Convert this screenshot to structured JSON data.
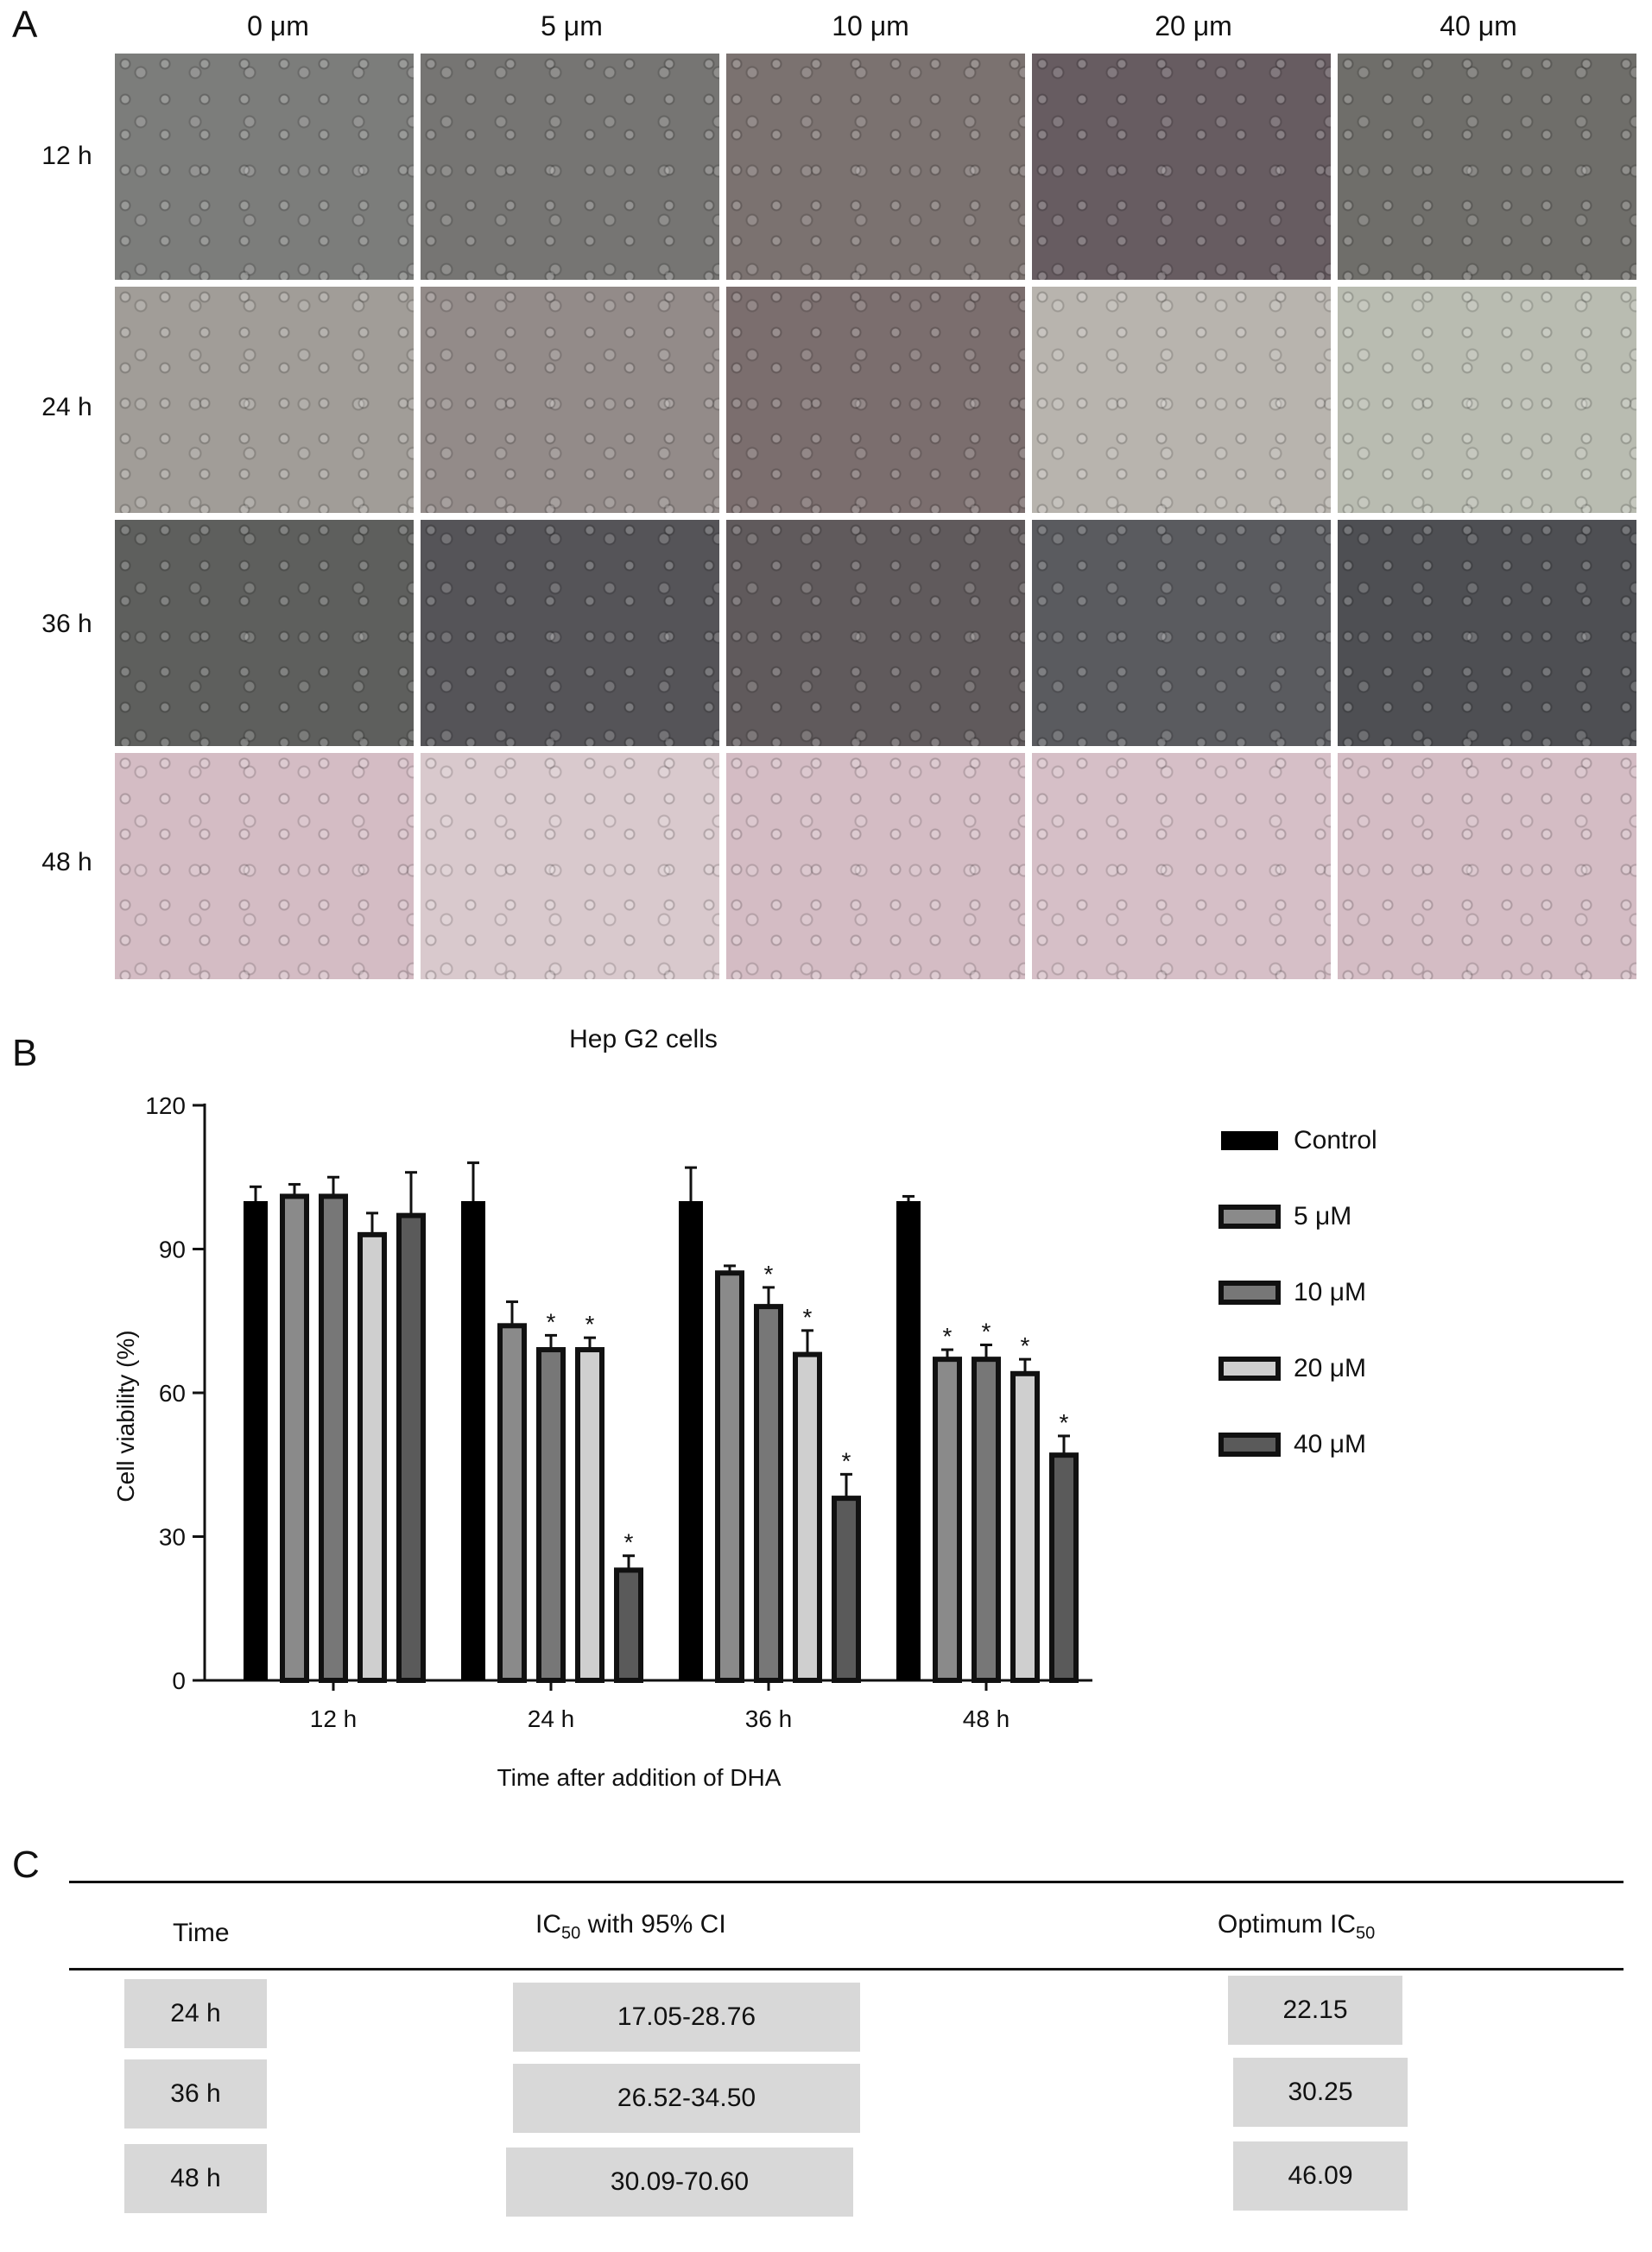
{
  "panel_a": {
    "letter": "A",
    "columns": [
      "0 μm",
      "5 μm",
      "10 μm",
      "20 μm",
      "40 μm"
    ],
    "rows": [
      "12 h",
      "24 h",
      "36 h",
      "48 h"
    ]
  },
  "panel_b": {
    "letter": "B",
    "star": "*"
  },
  "chart_data": {
    "type": "bar",
    "title": "Hep G2 cells",
    "xlabel": "Time after addition of DHA",
    "ylabel": "Cell viability (%)",
    "ylim": [
      0,
      120
    ],
    "yticks": [
      0,
      30,
      60,
      90,
      120
    ],
    "categories": [
      "12 h",
      "24 h",
      "36 h",
      "48 h"
    ],
    "series": [
      {
        "name": "Control",
        "values": [
          100,
          100,
          100,
          100
        ],
        "errors": [
          3,
          8,
          7,
          1
        ],
        "significant": [
          false,
          false,
          false,
          false
        ],
        "color": "#000000"
      },
      {
        "name": "5 μM",
        "values": [
          101,
          74,
          85,
          67
        ],
        "errors": [
          2.5,
          5,
          1.5,
          2
        ],
        "significant": [
          false,
          false,
          false,
          true
        ],
        "color": "#8a8a8a"
      },
      {
        "name": "10 μM",
        "values": [
          101,
          69,
          78,
          67
        ],
        "errors": [
          4,
          3,
          4,
          3
        ],
        "significant": [
          false,
          true,
          true,
          true
        ],
        "color": "#777777"
      },
      {
        "name": "20 μM",
        "values": [
          93,
          69,
          68,
          64
        ],
        "errors": [
          4.5,
          2.5,
          5,
          3
        ],
        "significant": [
          false,
          true,
          true,
          true
        ],
        "color": "#cfcfcf"
      },
      {
        "name": "40 μM",
        "values": [
          97,
          23,
          38,
          47
        ],
        "errors": [
          9,
          3,
          5,
          4
        ],
        "significant": [
          false,
          true,
          true,
          true
        ],
        "color": "#5a5a5a"
      }
    ],
    "legend_placement": "right"
  },
  "panel_c": {
    "letter": "C",
    "headers": {
      "time": "Time",
      "ic50_prefix": "IC",
      "ic50_sub": "50",
      "ic50_suffix": " with 95% CI",
      "optimum_prefix": "Optimum IC",
      "optimum_sub": "50"
    },
    "rows": [
      {
        "time": "24 h",
        "ci": "17.05-28.76",
        "optimum": "22.15"
      },
      {
        "time": "36 h",
        "ci": "26.52-34.50",
        "optimum": "30.25"
      },
      {
        "time": "48 h",
        "ci": "30.09-70.60",
        "optimum": "46.09"
      }
    ]
  }
}
